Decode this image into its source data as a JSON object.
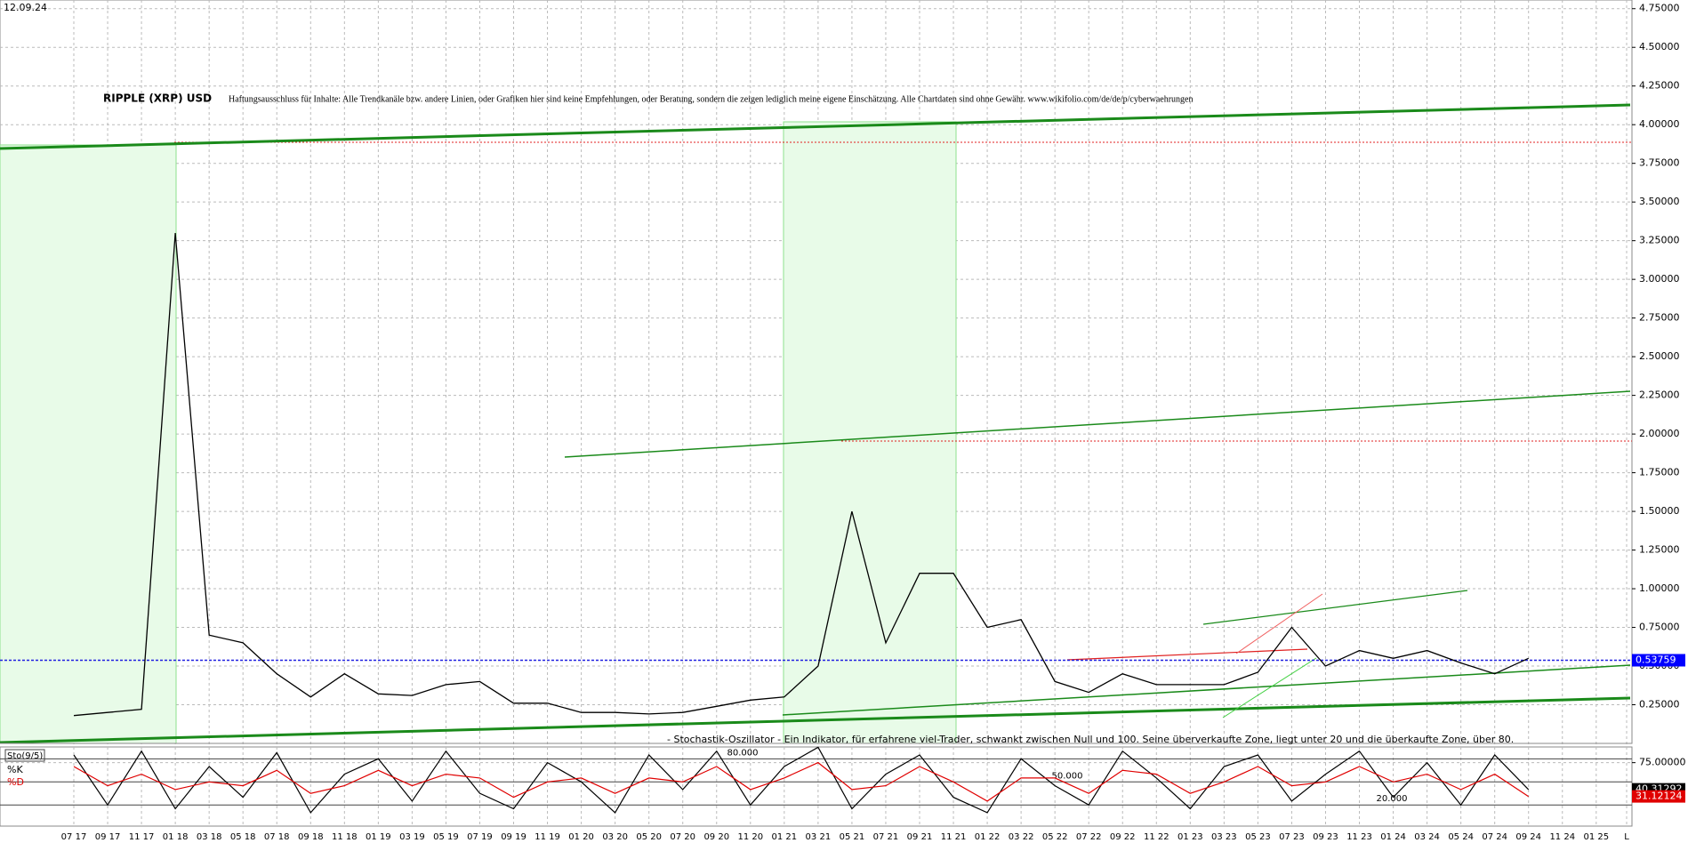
{
  "date": "12.09.24",
  "chart_data": [
    {
      "type": "line",
      "title": "RIPPLE (XRP) USD",
      "subtitle": "Haftungsausschluss für Inhalte: Alle Trendkanäle bzw. andere Linien, oder Grafiken hier sind keine Empfehlungen, oder Beratung, sondern die zeigen lediglich meine eigene Einschätzung. Alle Chartdaten sind ohne Gewähr.  www.wikifolio.com/de/de/p/cyberwaehrungen",
      "annotation": "- Stochastik-Oszillator - Ein Indikator, für erfahrene viel-Trader, schwankt zwischen Null und 100. Seine überverkaufte Zone, liegt unter 20 und die überkaufte Zone, über 80.",
      "categories": [
        "07 17",
        "09 17",
        "11 17",
        "01 18",
        "03 18",
        "05 18",
        "07 18",
        "09 18",
        "11 18",
        "01 19",
        "03 19",
        "05 19",
        "07 19",
        "09 19",
        "11 19",
        "01 20",
        "03 20",
        "05 20",
        "07 20",
        "09 20",
        "11 20",
        "01 21",
        "03 21",
        "05 21",
        "07 21",
        "09 21",
        "11 21",
        "01 22",
        "03 22",
        "05 22",
        "07 22",
        "09 22",
        "11 22",
        "01 23",
        "03 23",
        "05 23",
        "07 23",
        "09 23",
        "11 23",
        "01 24",
        "03 24",
        "05 24",
        "07 24",
        "09 24",
        "11 24",
        "01 25",
        "L"
      ],
      "series": [
        {
          "name": "RIPPLE (XRP) USD",
          "color": "#000000",
          "values": [
            0.18,
            0.2,
            0.22,
            3.3,
            0.7,
            0.65,
            0.45,
            0.3,
            0.45,
            0.32,
            0.31,
            0.38,
            0.4,
            0.26,
            0.26,
            0.2,
            0.2,
            0.19,
            0.2,
            0.24,
            0.28,
            0.3,
            0.5,
            1.5,
            0.65,
            1.1,
            1.1,
            0.75,
            0.8,
            0.4,
            0.33,
            0.45,
            0.38,
            0.38,
            0.38,
            0.46,
            0.75,
            0.5,
            0.6,
            0.55,
            0.6,
            0.52,
            0.45,
            0.55,
            null,
            null,
            null
          ]
        }
      ],
      "last_price": 0.53759,
      "ylim": [
        0,
        4.806
      ],
      "yticks": [
        {
          "value": 0.25,
          "label": "0.25000"
        },
        {
          "value": 0.5,
          "label": "0.50000"
        },
        {
          "value": 0.75,
          "label": "0.75000"
        },
        {
          "value": 1,
          "label": "1.00000"
        },
        {
          "value": 1.25,
          "label": "1.25000"
        },
        {
          "value": 1.5,
          "label": "1.50000"
        },
        {
          "value": 1.75,
          "label": "1.75000"
        },
        {
          "value": 2,
          "label": "2.00000"
        },
        {
          "value": 2.25,
          "label": "2.25000"
        },
        {
          "value": 2.5,
          "label": "2.50000"
        },
        {
          "value": 2.75,
          "label": "2.75000"
        },
        {
          "value": 3,
          "label": "3.00000"
        },
        {
          "value": 3.25,
          "label": "3.25000"
        },
        {
          "value": 3.5,
          "label": "3.50000"
        },
        {
          "value": 3.75,
          "label": "3.75000"
        },
        {
          "value": 4,
          "label": "4.00000"
        },
        {
          "value": 4.25,
          "label": "4.25000"
        },
        {
          "value": 4.5,
          "label": "4.50000"
        },
        {
          "value": 4.75,
          "label": "4.75000"
        }
      ],
      "grid": true
    },
    {
      "type": "line",
      "title": "Sto(9/5)",
      "series": [
        {
          "name": "%K",
          "color": "#000000",
          "values": [
            85,
            20,
            90,
            15,
            70,
            30,
            88,
            10,
            60,
            80,
            25,
            90,
            35,
            15,
            75,
            50,
            10,
            85,
            40,
            90,
            20,
            70,
            95,
            15,
            60,
            85,
            30,
            10,
            80,
            45,
            20,
            90,
            55,
            15,
            70,
            85,
            25,
            60,
            90,
            30,
            75,
            20,
            85,
            40,
            null,
            null,
            null
          ]
        },
        {
          "name": "%D",
          "color": "#e00000",
          "values": [
            70,
            45,
            60,
            40,
            50,
            45,
            65,
            35,
            45,
            65,
            45,
            60,
            55,
            30,
            50,
            55,
            35,
            55,
            50,
            70,
            40,
            55,
            75,
            40,
            45,
            70,
            50,
            25,
            55,
            55,
            35,
            65,
            60,
            35,
            50,
            70,
            45,
            50,
            70,
            50,
            60,
            40,
            60,
            31,
            null,
            null,
            null
          ]
        }
      ],
      "last_values": [
        40.31292,
        31.12124
      ],
      "levels": [
        {
          "value": 80,
          "label": "80.000"
        },
        {
          "value": 50,
          "label": "50.000"
        },
        {
          "value": 20,
          "label": "20.000"
        }
      ],
      "ylim": [
        -7.5,
        95.4
      ],
      "yticks": [
        {
          "value": 75,
          "label": "75.00000"
        }
      ]
    }
  ]
}
